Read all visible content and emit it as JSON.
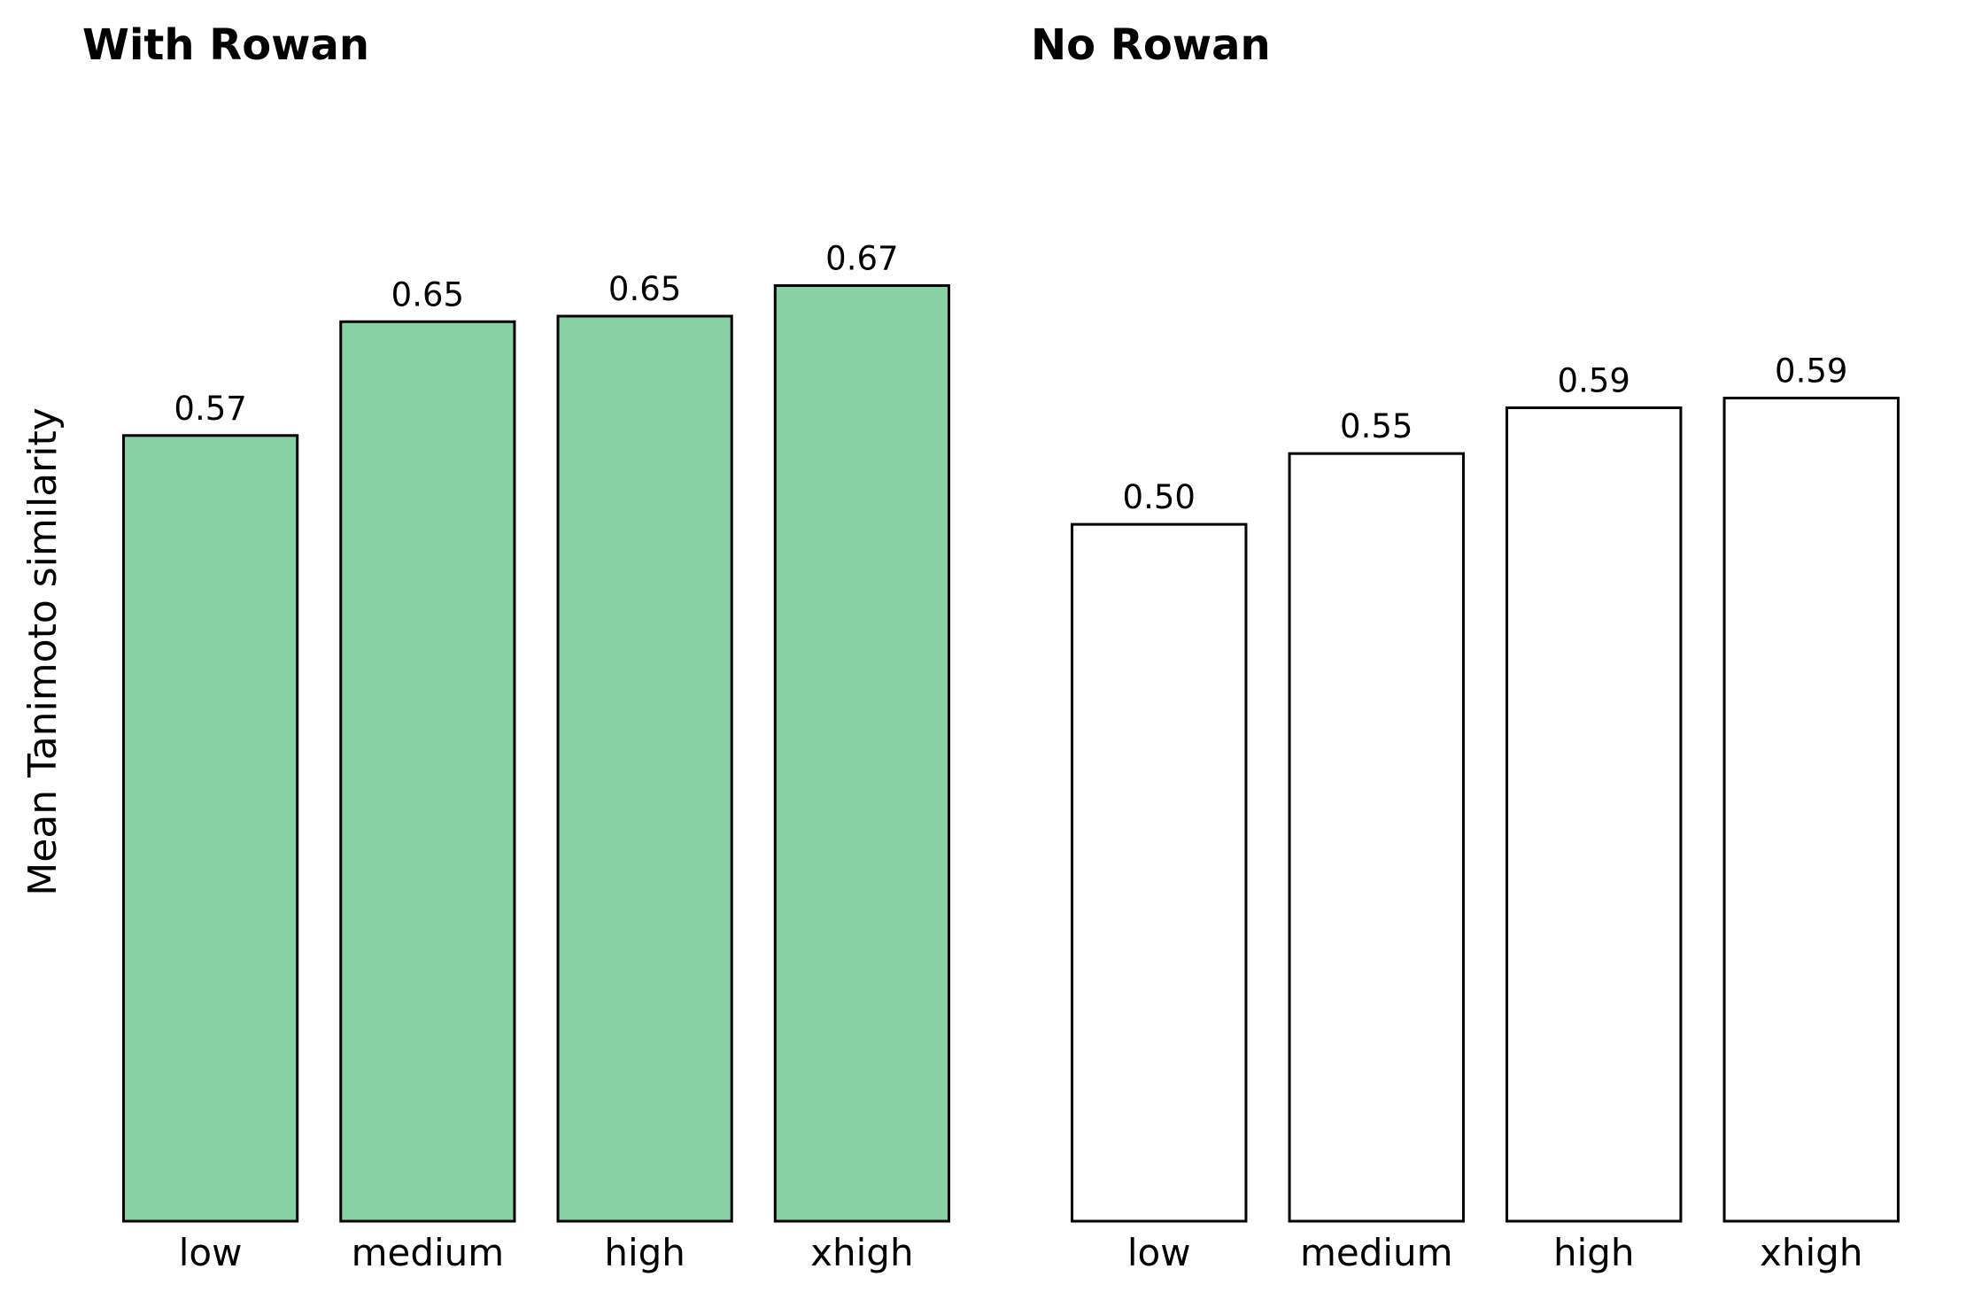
{
  "chart_data": [
    {
      "type": "bar",
      "title": "With Rowan",
      "y_label": "Mean Tanimoto similarity",
      "categories": [
        "low",
        "medium",
        "high",
        "xhigh"
      ],
      "values": [
        0.566,
        0.648,
        0.652,
        0.674
      ],
      "value_labels": [
        "0.57",
        "0.65",
        "0.65",
        "0.67"
      ],
      "color": "#88d1a3",
      "edgecolor": "#000000",
      "ylim": [
        0,
        0.8
      ]
    },
    {
      "type": "bar",
      "title": "No Rowan",
      "categories": [
        "low",
        "medium",
        "high",
        "xhigh"
      ],
      "values": [
        0.502,
        0.553,
        0.586,
        0.593
      ],
      "value_labels": [
        "0.50",
        "0.55",
        "0.59",
        "0.59"
      ],
      "color": "#ffffff",
      "edgecolor": "#000000",
      "ylim": [
        0,
        0.8
      ]
    }
  ]
}
